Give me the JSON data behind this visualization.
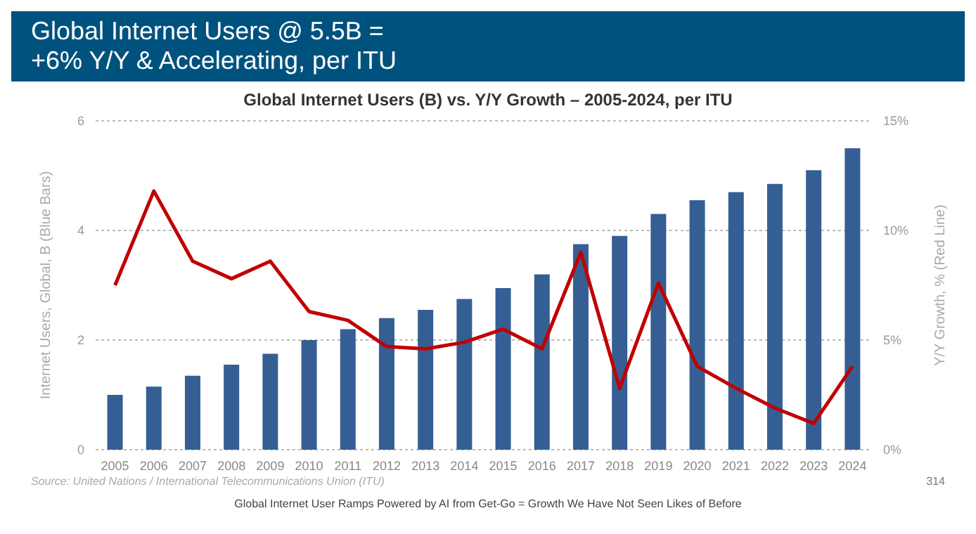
{
  "chart_data": {
    "type": "bar",
    "title": "Global Internet Users @ 5.5B =\n+6% Y/Y & Accelerating, per ITU",
    "subtitle": "Global Internet Users (B) vs. Y/Y Growth – 2005-2024, per ITU",
    "ylabel": "Internet Users, Global, B (Blue Bars)",
    "y2label": "Y/Y Growth, % (Red Line)",
    "categories": [
      "2005",
      "2006",
      "2007",
      "2008",
      "2009",
      "2010",
      "2011",
      "2012",
      "2013",
      "2014",
      "2015",
      "2016",
      "2017",
      "2018",
      "2019",
      "2020",
      "2021",
      "2022",
      "2023",
      "2024"
    ],
    "series": [
      {
        "color": "#355f94",
        "values": [
          1.0,
          1.15,
          1.35,
          1.55,
          1.75,
          2.0,
          2.2,
          2.4,
          2.55,
          2.75,
          2.95,
          3.2,
          3.75,
          3.9,
          4.3,
          4.55,
          4.7,
          4.85,
          5.1,
          5.5
        ]
      },
      {
        "type": "line",
        "axis": "y2",
        "color": "#c00000",
        "values": [
          7.5,
          11.8,
          8.6,
          7.8,
          8.6,
          6.3,
          5.9,
          4.7,
          4.6,
          4.9,
          5.5,
          4.6,
          9.0,
          2.8,
          7.6,
          3.8,
          2.8,
          1.9,
          1.2,
          3.8
        ]
      }
    ],
    "ylim": [
      0,
      6
    ],
    "yticks": [
      0,
      2,
      4,
      6
    ],
    "y2lim": [
      0,
      15
    ],
    "y2ticks": [
      {
        "value": 0,
        "label": "0%"
      },
      {
        "value": 5,
        "label": "5%"
      },
      {
        "value": 10,
        "label": "10%"
      },
      {
        "value": 15,
        "label": "15%"
      }
    ],
    "grid": "y",
    "marker": "none",
    "line_style": "solid",
    "annotations": [
      "Source: United Nations / International Telecommunications Union (ITU)",
      "Global Internet User Ramps Powered by AI from Get-Go = Growth We Have Not Seen Likes of Before",
      "314"
    ]
  }
}
